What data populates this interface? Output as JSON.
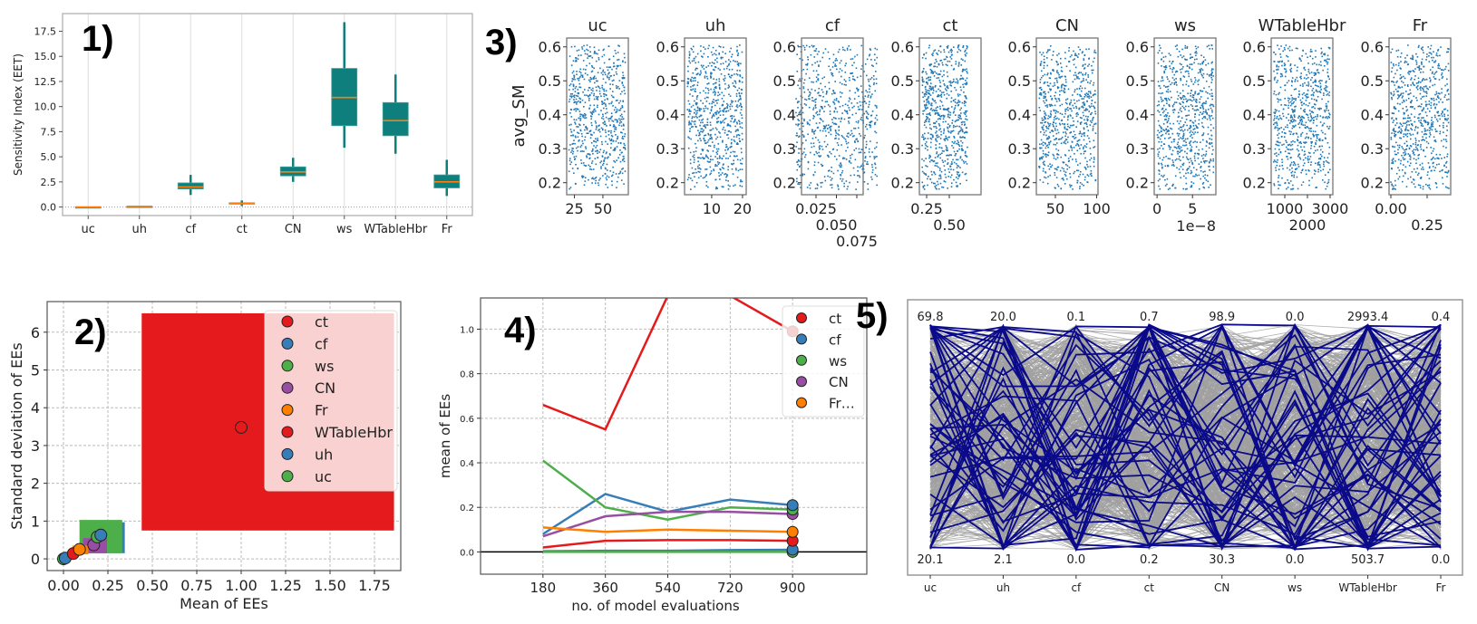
{
  "panel_labels": [
    "1)",
    "2)",
    "3)",
    "4)",
    "5)"
  ],
  "colors": {
    "box_fill": "#0f7f7d",
    "median": "#ff7f0e",
    "scatter": "#1f77b4",
    "red": "#e41a1c",
    "blue": "#377eb8",
    "green": "#4daf4a",
    "purple": "#984ea3",
    "orange": "#ff7f00",
    "pc_background": "#a0a0a0",
    "pc_highlight": "#0a0a8a"
  },
  "chart_data": [
    {
      "type": "box",
      "ylabel": "Sensitivity Index (EET)",
      "categories": [
        "uc",
        "uh",
        "cf",
        "ct",
        "CN",
        "ws",
        "WTableHbr",
        "Fr"
      ],
      "ylim": [
        -0.85,
        19.26
      ],
      "yticks": [
        "0.0",
        "2.5",
        "5.0",
        "7.5",
        "10.0",
        "12.5",
        "15.0",
        "17.5"
      ],
      "boxes": [
        {
          "whislo": 0.0,
          "q1": 0.0,
          "med": 0.0,
          "q3": 0.02,
          "whishi": 0.03
        },
        {
          "whislo": 0.02,
          "q1": 0.04,
          "med": 0.06,
          "q3": 0.08,
          "whishi": 0.12
        },
        {
          "whislo": 1.2,
          "q1": 1.8,
          "med": 2.0,
          "q3": 2.4,
          "whishi": 3.2
        },
        {
          "whislo": 0.1,
          "q1": 0.3,
          "med": 0.35,
          "q3": 0.42,
          "whishi": 0.65
        },
        {
          "whislo": 2.5,
          "q1": 3.1,
          "med": 3.5,
          "q3": 4.0,
          "whishi": 4.9
        },
        {
          "whislo": 5.9,
          "q1": 8.1,
          "med": 10.9,
          "q3": 13.8,
          "whishi": 18.4
        },
        {
          "whislo": 5.3,
          "q1": 7.1,
          "med": 8.6,
          "q3": 10.4,
          "whishi": 13.2
        },
        {
          "whislo": 1.1,
          "q1": 1.9,
          "med": 2.5,
          "q3": 3.2,
          "whishi": 4.7
        }
      ],
      "grid": "vertical"
    },
    {
      "type": "scatter",
      "xlabel": "Mean of EEs",
      "ylabel": "Standard deviation of EEs",
      "xlim": [
        -0.092,
        1.898
      ],
      "ylim": [
        -0.31,
        6.81
      ],
      "xticks": [
        "0.00",
        "0.25",
        "0.50",
        "0.75",
        "1.00",
        "1.25",
        "1.50",
        "1.75"
      ],
      "yticks": [
        "0",
        "1",
        "2",
        "3",
        "4",
        "5",
        "6"
      ],
      "grid": true,
      "legend_position": "top-right",
      "points": [
        {
          "name": "ct",
          "color": "red",
          "x": 1.0,
          "y": 3.48,
          "box": [
            0.44,
            0.75,
            1.86,
            6.5
          ]
        },
        {
          "name": "cf",
          "color": "blue",
          "x": 0.21,
          "y": 0.63,
          "box": [
            0.1,
            0.15,
            0.345,
            0.97
          ]
        },
        {
          "name": "ws",
          "color": "green",
          "x": 0.19,
          "y": 0.58,
          "box": [
            0.09,
            0.15,
            0.33,
            1.03
          ]
        },
        {
          "name": "CN",
          "color": "purple",
          "x": 0.17,
          "y": 0.37,
          "box": [
            0.11,
            0.15,
            0.245,
            0.55
          ]
        },
        {
          "name": "Fr",
          "color": "orange",
          "x": 0.09,
          "y": 0.25,
          "box": [
            0.05,
            0.12,
            0.14,
            0.35
          ]
        },
        {
          "name": "WTableHbr",
          "color": "red",
          "x": 0.055,
          "y": 0.14
        },
        {
          "name": "uh",
          "color": "blue",
          "x": 0.01,
          "y": 0.02
        },
        {
          "name": "uc",
          "color": "green",
          "x": 0.0,
          "y": 0.0
        }
      ]
    },
    {
      "type": "scatter",
      "ylabel": "avg_SM",
      "ylim": [
        0.1645,
        0.626
      ],
      "yticks": [
        "0.2",
        "0.3",
        "0.4",
        "0.5",
        "0.6"
      ],
      "y_range": [
        0.18,
        0.605
      ],
      "subplots": [
        {
          "title": "uc",
          "xlim": [
            18.2,
            72.3
          ],
          "x_range": [
            20.1,
            69.8
          ],
          "xticks": [
            {
              "v": 25,
              "l": "25"
            },
            {
              "v": 50,
              "l": "50"
            }
          ]
        },
        {
          "title": "uh",
          "xlim": [
            1.2,
            21.2
          ],
          "x_range": [
            2.1,
            20.0
          ],
          "xticks": [
            {
              "v": 10,
              "l": "10"
            },
            {
              "v": 20,
              "l": "20"
            }
          ]
        },
        {
          "title": "cf",
          "xlim": [
            0.0072,
            0.0828
          ],
          "x_range": [
            0.0,
            0.1
          ],
          "xticks": [
            {
              "v": 0.025,
              "l": "0.025"
            },
            {
              "v": 0.05,
              "l": "0.050"
            },
            {
              "v": 0.075,
              "l": "0.075"
            }
          ]
        },
        {
          "title": "ct",
          "xlim": [
            0.17,
            0.85
          ],
          "x_range": [
            0.2,
            0.7
          ],
          "xticks": [
            {
              "v": 0.25,
              "l": "0.25"
            },
            {
              "v": 0.5,
              "l": "0.50"
            }
          ]
        },
        {
          "title": "CN",
          "xlim": [
            27,
            101.6
          ],
          "x_range": [
            30.3,
            98.9
          ],
          "xticks": [
            {
              "v": 50,
              "l": "50"
            },
            {
              "v": 100,
              "l": "100"
            }
          ]
        },
        {
          "title": "ws",
          "xlim": [
            -0.4,
            8.3
          ],
          "x_range": [
            0,
            8
          ],
          "xticks": [
            {
              "v": 0,
              "l": "0"
            },
            {
              "v": 5,
              "l": "5"
            }
          ],
          "offset_text": "1e−8"
        },
        {
          "title": "WTableHbr",
          "xlim": [
            400,
            3120
          ],
          "x_range": [
            503.7,
            2993.4
          ],
          "xticks": [
            {
              "v": 1000,
              "l": "1000"
            },
            {
              "v": 2000,
              "l": "2000"
            },
            {
              "v": 3000,
              "l": "3000"
            }
          ]
        },
        {
          "title": "Fr",
          "xlim": [
            -0.0125,
            0.4125
          ],
          "x_range": [
            0.0,
            0.4
          ],
          "xticks": [
            {
              "v": 0,
              "l": "0.00"
            },
            {
              "v": 0.25,
              "l": "0.25"
            }
          ]
        }
      ]
    },
    {
      "type": "line",
      "xlabel": "no. of model evaluations",
      "ylabel": "mean of EEs",
      "x": [
        180,
        360,
        540,
        720,
        900
      ],
      "xlim": [
        0,
        1114
      ],
      "ylim": [
        -0.1,
        1.14
      ],
      "xticks": [
        "180",
        "360",
        "540",
        "720",
        "900"
      ],
      "yticks": [
        "0.0",
        "0.2",
        "0.4",
        "0.6",
        "0.8",
        "1.0"
      ],
      "grid": true,
      "legend_position": "top-right",
      "legend_labels": [
        "ct",
        "cf",
        "ws",
        "CN",
        "Fr…"
      ],
      "series": [
        {
          "name": "ct",
          "color": "red",
          "values": [
            0.66,
            0.55,
            1.15,
            1.15,
            0.99
          ]
        },
        {
          "name": "cf",
          "color": "blue",
          "values": [
            0.08,
            0.26,
            0.18,
            0.235,
            0.21
          ]
        },
        {
          "name": "ws",
          "color": "green",
          "values": [
            0.41,
            0.2,
            0.145,
            0.2,
            0.19
          ]
        },
        {
          "name": "CN",
          "color": "purple",
          "values": [
            0.07,
            0.16,
            0.18,
            0.18,
            0.17
          ]
        },
        {
          "name": "Fr",
          "color": "orange",
          "values": [
            0.11,
            0.09,
            0.1,
            0.095,
            0.09
          ]
        },
        {
          "color": "red",
          "values": [
            0.02,
            0.05,
            0.053,
            0.053,
            0.05
          ]
        },
        {
          "color": "blue",
          "values": [
            0.003,
            0.005,
            0.005,
            0.008,
            0.01
          ]
        },
        {
          "color": "green",
          "values": [
            0.0,
            0.0,
            0.0,
            0.0,
            0.0
          ]
        }
      ]
    },
    {
      "type": "parallel_coordinates",
      "axes": [
        {
          "name": "uc",
          "max": "69.8",
          "min": "20.1"
        },
        {
          "name": "uh",
          "max": "20.0",
          "min": "2.1"
        },
        {
          "name": "cf",
          "max": "0.1",
          "min": "0.0"
        },
        {
          "name": "ct",
          "max": "0.7",
          "min": "0.2"
        },
        {
          "name": "CN",
          "max": "98.9",
          "min": "30.3"
        },
        {
          "name": "ws",
          "max": "0.0",
          "min": "0.0"
        },
        {
          "name": "WTableHbr",
          "max": "2993.4",
          "min": "503.7"
        },
        {
          "name": "Fr",
          "max": "0.4",
          "min": "0.0"
        }
      ]
    }
  ]
}
